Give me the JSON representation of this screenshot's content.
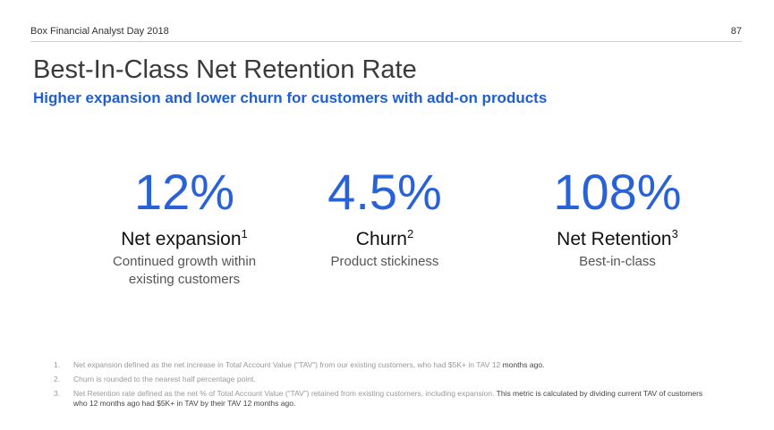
{
  "header": {
    "event": "Box Financial Analyst Day 2018",
    "page_number": "87"
  },
  "title": "Best-In-Class Net Retention Rate",
  "subtitle": "Higher expansion and lower churn for customers with add-on products",
  "metrics": [
    {
      "value": "12%",
      "label": "Net expansion",
      "footnote_ref": "1",
      "desc_line1": "Continued growth within",
      "desc_line2": "existing customers"
    },
    {
      "value": "4.5%",
      "label": "Churn",
      "footnote_ref": "2",
      "desc_line1": "Product stickiness",
      "desc_line2": ""
    },
    {
      "value": "108%",
      "label": "Net Retention",
      "footnote_ref": "3",
      "desc_line1": "Best-in-class",
      "desc_line2": ""
    }
  ],
  "footnotes": [
    {
      "num": "1.",
      "text": "Net expansion defined as the net increase in Total Account Value (“TAV”)  from our existing customers, who had $5K+ in TAV 12 ",
      "text_dark": "months ago."
    },
    {
      "num": "2.",
      "text": "Churn is rounded to the nearest half percentage point.",
      "text_dark": ""
    },
    {
      "num": "3.",
      "text": "Net Retention rate defined as the net % of Total Account Value (“TAV”) retained from existing customers, including expansion. ",
      "text_dark": "This metric is calculated by dividing current TAV of customers who 12 months ago had $5K+ in TAV by their TAV 12 months ago."
    }
  ]
}
